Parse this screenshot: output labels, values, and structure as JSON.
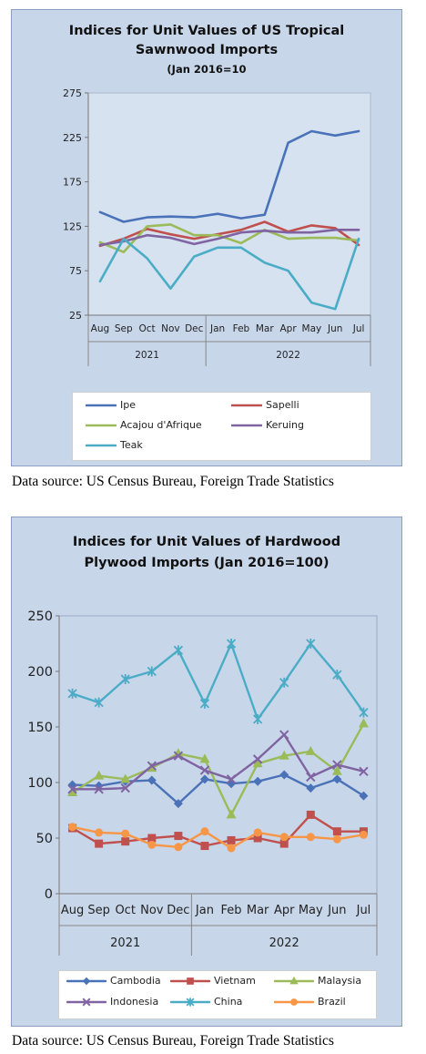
{
  "chart_data": [
    {
      "type": "line",
      "title": "Indices for Unit Values of US Tropical Sawnwood Imports",
      "title_line1": "Indices for Unit Values of US Tropical",
      "title_line2": "Sawnwood Imports",
      "subtitle": "(Jan 2016=10",
      "categories": [
        "Aug",
        "Sep",
        "Oct",
        "Nov",
        "Dec",
        "Jan",
        "Feb",
        "Mar",
        "Apr",
        "May",
        "Jun",
        "Jul"
      ],
      "year_groups": [
        {
          "label": "2021",
          "start": 0,
          "end": 4
        },
        {
          "label": "2022",
          "start": 5,
          "end": 11
        }
      ],
      "ylim": [
        25,
        275
      ],
      "yticks": [
        "275",
        "225",
        "175",
        "125",
        "75",
        "25"
      ],
      "grid": false,
      "legend_position": "bottom",
      "plot_background": "#d6e2f0",
      "series": [
        {
          "name": "Ipe",
          "color": "#4a72b8",
          "marker": "none",
          "values": [
            141,
            130,
            135,
            136,
            135,
            139,
            134,
            138,
            219,
            232,
            227,
            232
          ]
        },
        {
          "name": "Sapelli",
          "color": "#c0504d",
          "marker": "none",
          "values": [
            103,
            111,
            122,
            116,
            111,
            116,
            121,
            130,
            119,
            126,
            123,
            104
          ]
        },
        {
          "name": "Acajou d'Afrique",
          "color": "#9bbb59",
          "marker": "none",
          "values": [
            107,
            96,
            125,
            127,
            115,
            115,
            106,
            121,
            111,
            112,
            112,
            109
          ]
        },
        {
          "name": "Keruing",
          "color": "#8064a2",
          "marker": "none",
          "values": [
            104,
            108,
            115,
            112,
            105,
            111,
            118,
            120,
            118,
            118,
            121,
            121
          ]
        },
        {
          "name": "Teak",
          "color": "#4bacc6",
          "marker": "none",
          "values": [
            63,
            111,
            89,
            55,
            91,
            101,
            101,
            84,
            75,
            39,
            32,
            111
          ]
        }
      ]
    },
    {
      "type": "line",
      "title": "Indices for Unit Values of Hardwood Plywood Imports (Jan 2016=100)",
      "title_line1": "Indices for Unit Values of Hardwood",
      "title_line2": "Plywood Imports (Jan 2016=100)",
      "categories": [
        "Aug",
        "Sep",
        "Oct",
        "Nov",
        "Dec",
        "Jan",
        "Feb",
        "Mar",
        "Apr",
        "May",
        "Jun",
        "Jul"
      ],
      "year_groups": [
        {
          "label": "2021",
          "start": 0,
          "end": 4
        },
        {
          "label": "2022",
          "start": 5,
          "end": 11
        }
      ],
      "ylim": [
        0,
        250
      ],
      "yticks": [
        "250",
        "200",
        "150",
        "100",
        "50",
        "0"
      ],
      "grid": false,
      "legend_position": "bottom",
      "plot_background": "#c8d6ea",
      "series": [
        {
          "name": "Cambodia",
          "color": "#4a72b8",
          "marker": "diamond",
          "values": [
            98,
            97,
            101,
            102,
            81,
            103,
            99,
            101,
            107,
            95,
            103,
            88
          ]
        },
        {
          "name": "Vietnam",
          "color": "#c0504d",
          "marker": "square",
          "values": [
            59,
            45,
            47,
            50,
            52,
            43,
            48,
            50,
            45,
            71,
            56,
            56
          ]
        },
        {
          "name": "Malaysia",
          "color": "#9bbb59",
          "marker": "triangle",
          "values": [
            91,
            106,
            103,
            113,
            126,
            121,
            71,
            117,
            124,
            128,
            110,
            153
          ]
        },
        {
          "name": "Indonesia",
          "color": "#8064a2",
          "marker": "x",
          "values": [
            94,
            94,
            95,
            115,
            124,
            111,
            103,
            121,
            143,
            105,
            116,
            110
          ]
        },
        {
          "name": "China",
          "color": "#4bacc6",
          "marker": "star",
          "values": [
            180,
            172,
            193,
            200,
            219,
            171,
            225,
            157,
            190,
            225,
            197,
            163
          ]
        },
        {
          "name": "Brazil",
          "color": "#f79646",
          "marker": "circle",
          "values": [
            60,
            55,
            54,
            44,
            42,
            56,
            41,
            55,
            51,
            51,
            49,
            53
          ]
        }
      ]
    }
  ],
  "sources": [
    "Data source: US Census Bureau, Foreign Trade Statistics",
    "Data source: US Census Bureau, Foreign Trade Statistics"
  ]
}
